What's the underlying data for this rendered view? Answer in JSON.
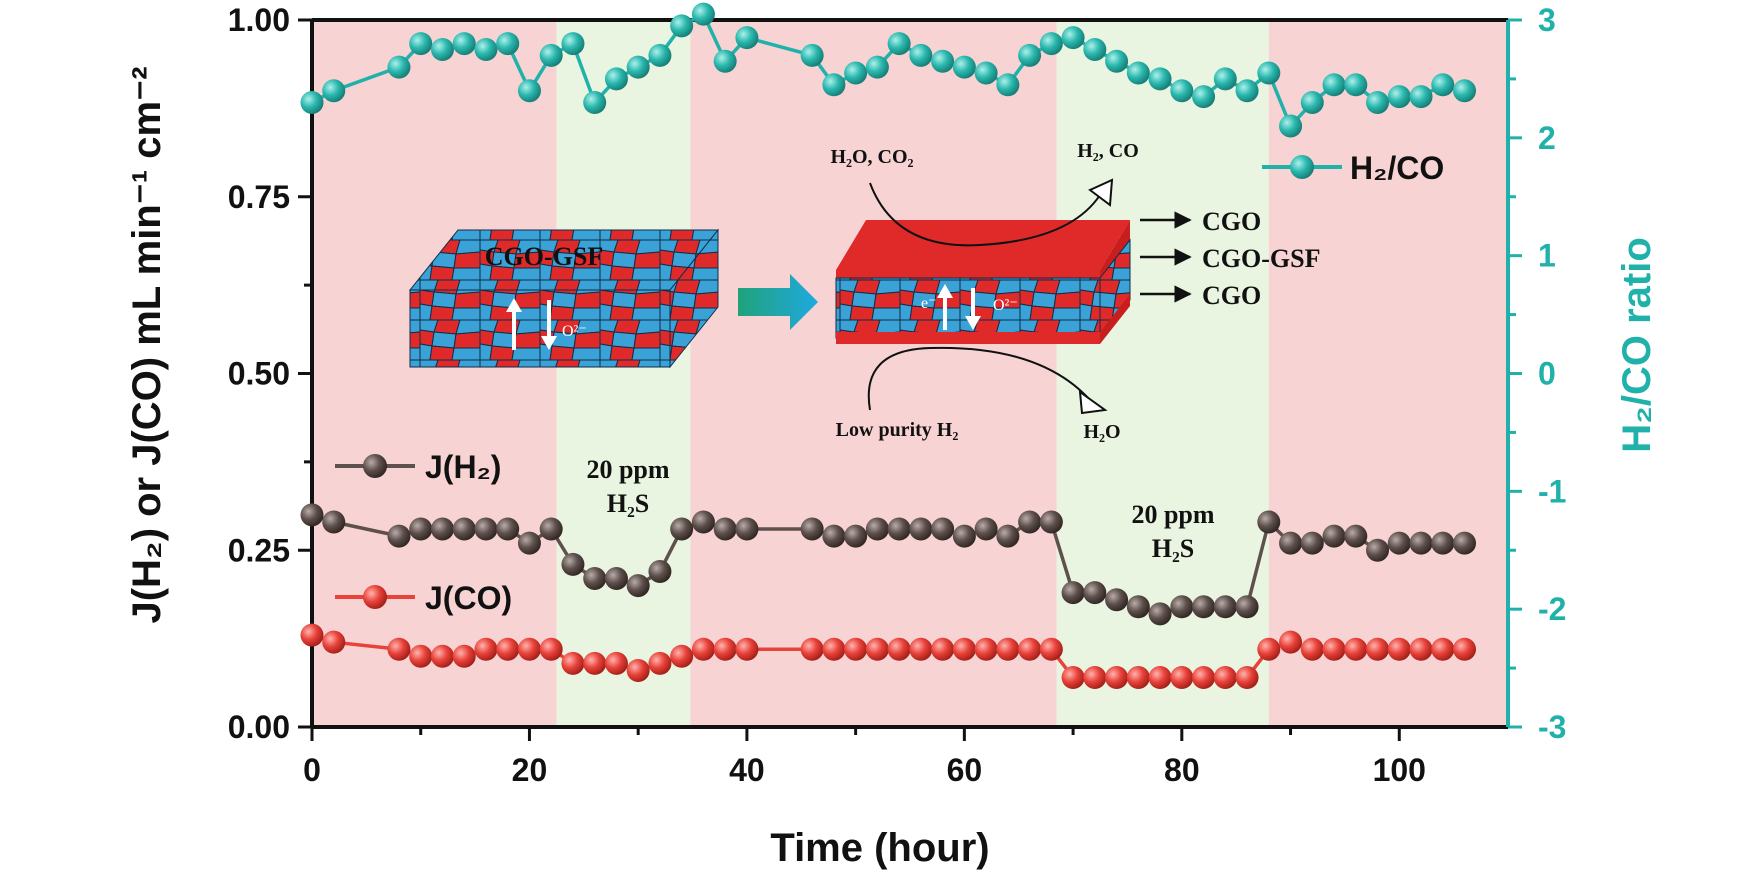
{
  "chart_data": {
    "type": "line",
    "xlabel": "Time (hour)",
    "ylabel": "J(H₂) or J(CO) mL min⁻¹ cm⁻²",
    "y2label": "H₂/CO ratio",
    "xlim": [
      0,
      110
    ],
    "ylim": [
      0,
      1.0
    ],
    "y2lim": [
      -3,
      3
    ],
    "x_ticks": [
      "0",
      "20",
      "40",
      "60",
      "80",
      "100"
    ],
    "y_ticks": [
      "0.00",
      "0.25",
      "0.50",
      "0.75",
      "1.00"
    ],
    "y2_ticks": [
      "-3",
      "-2",
      "-1",
      "0",
      "1",
      "2",
      "3"
    ],
    "legend_position": "left and top-right",
    "shaded_regions": [
      {
        "x": [
          0,
          22.5
        ],
        "label": "",
        "color": "#f7d3d3"
      },
      {
        "x": [
          22.5,
          34.8
        ],
        "label": "20 ppm H₂S",
        "color": "#e9f4e1"
      },
      {
        "x": [
          34.8,
          68.5
        ],
        "label": "",
        "color": "#f7d3d3"
      },
      {
        "x": [
          68.5,
          88
        ],
        "label": "20 ppm H₂S",
        "color": "#e9f4e1"
      },
      {
        "x": [
          88,
          110
        ],
        "label": "",
        "color": "#f7d3d3"
      }
    ],
    "series": [
      {
        "name": "H₂/CO",
        "axis": "right",
        "color": "#20b2aa",
        "x": [
          0,
          2,
          8,
          10,
          12,
          14,
          16,
          18,
          20,
          22,
          24,
          26,
          28,
          30,
          32,
          34,
          36,
          38,
          40,
          46,
          48,
          50,
          52,
          54,
          56,
          58,
          60,
          62,
          64,
          66,
          68,
          70,
          72,
          74,
          76,
          78,
          80,
          82,
          84,
          86,
          88,
          90,
          92,
          94,
          96,
          98,
          100,
          102,
          104,
          106
        ],
        "values": [
          2.3,
          2.4,
          2.6,
          2.8,
          2.75,
          2.8,
          2.75,
          2.8,
          2.4,
          2.7,
          2.8,
          2.3,
          2.5,
          2.6,
          2.7,
          2.95,
          3.05,
          2.65,
          2.85,
          2.7,
          2.45,
          2.55,
          2.6,
          2.8,
          2.7,
          2.65,
          2.6,
          2.55,
          2.45,
          2.7,
          2.8,
          2.85,
          2.75,
          2.65,
          2.55,
          2.5,
          2.4,
          2.35,
          2.5,
          2.4,
          2.55,
          2.1,
          2.3,
          2.45,
          2.45,
          2.3,
          2.35,
          2.35,
          2.45,
          2.4
        ]
      },
      {
        "name": "J(H₂)",
        "axis": "left",
        "color": "#5e504c",
        "x": [
          0,
          2,
          8,
          10,
          12,
          14,
          16,
          18,
          20,
          22,
          24,
          26,
          28,
          30,
          32,
          34,
          36,
          38,
          40,
          46,
          48,
          50,
          52,
          54,
          56,
          58,
          60,
          62,
          64,
          66,
          68,
          70,
          72,
          74,
          76,
          78,
          80,
          82,
          84,
          86,
          88,
          90,
          92,
          94,
          96,
          98,
          100,
          102,
          104,
          106
        ],
        "values": [
          0.3,
          0.29,
          0.27,
          0.28,
          0.28,
          0.28,
          0.28,
          0.28,
          0.26,
          0.28,
          0.23,
          0.21,
          0.21,
          0.2,
          0.22,
          0.28,
          0.29,
          0.28,
          0.28,
          0.28,
          0.27,
          0.27,
          0.28,
          0.28,
          0.28,
          0.28,
          0.27,
          0.28,
          0.27,
          0.29,
          0.29,
          0.19,
          0.19,
          0.18,
          0.17,
          0.16,
          0.17,
          0.17,
          0.17,
          0.17,
          0.29,
          0.26,
          0.26,
          0.27,
          0.27,
          0.25,
          0.26,
          0.26,
          0.26,
          0.26
        ]
      },
      {
        "name": "J(CO)",
        "axis": "left",
        "color": "#e8423a",
        "x": [
          0,
          2,
          8,
          10,
          12,
          14,
          16,
          18,
          20,
          22,
          24,
          26,
          28,
          30,
          32,
          34,
          36,
          38,
          40,
          46,
          48,
          50,
          52,
          54,
          56,
          58,
          60,
          62,
          64,
          66,
          68,
          70,
          72,
          74,
          76,
          78,
          80,
          82,
          84,
          86,
          88,
          90,
          92,
          94,
          96,
          98,
          100,
          102,
          104,
          106
        ],
        "values": [
          0.13,
          0.12,
          0.11,
          0.1,
          0.1,
          0.1,
          0.11,
          0.11,
          0.11,
          0.11,
          0.09,
          0.09,
          0.09,
          0.08,
          0.09,
          0.1,
          0.11,
          0.11,
          0.11,
          0.11,
          0.11,
          0.11,
          0.11,
          0.11,
          0.11,
          0.11,
          0.11,
          0.11,
          0.11,
          0.11,
          0.11,
          0.07,
          0.07,
          0.07,
          0.07,
          0.07,
          0.07,
          0.07,
          0.07,
          0.07,
          0.11,
          0.12,
          0.11,
          0.11,
          0.11,
          0.11,
          0.11,
          0.11,
          0.11,
          0.11
        ]
      }
    ],
    "annotations": {
      "h2s_1_line1": "20 ppm",
      "h2s_1_line2": "H₂S",
      "h2s_2_line1": "20 ppm",
      "h2s_2_line2": "H₂S"
    },
    "inset": {
      "block1_label": "CGO-GSF",
      "block1_o2": "O²⁻",
      "block2_e": "e⁻",
      "block2_o2": "O²⁻",
      "layer_top": "CGO",
      "layer_mid": "CGO-GSF",
      "layer_bot": "CGO",
      "in_top": "H₂O, CO₂",
      "out_top": "H₂, CO",
      "in_bottom": "Low purity H₂",
      "out_bottom": "H₂O"
    }
  }
}
